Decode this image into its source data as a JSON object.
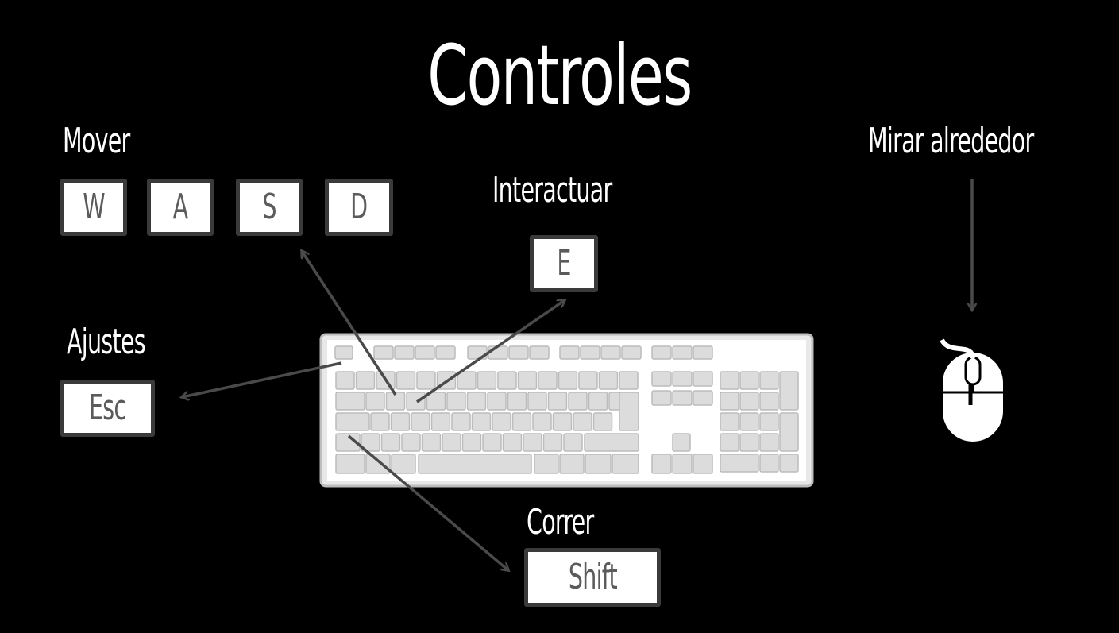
{
  "title": "Controles",
  "sections": {
    "move": {
      "label": "Mover",
      "keys": [
        "W",
        "A",
        "S",
        "D"
      ]
    },
    "interact": {
      "label": "Interactuar",
      "key": "E"
    },
    "settings": {
      "label": "Ajustes",
      "key": "Esc"
    },
    "run": {
      "label": "Correr",
      "key": "Shift"
    },
    "look": {
      "label": "Mirar alrededor"
    }
  },
  "icons": {
    "keyboard": "keyboard-icon",
    "mouse": "mouse-icon"
  },
  "colors": {
    "background": "#000000",
    "text": "#ffffff",
    "key_text": "#5b5b5b",
    "key_border": "#3a3a3a",
    "arrow": "#4a4a4a",
    "keyboard_body": "#e3e3e3"
  }
}
